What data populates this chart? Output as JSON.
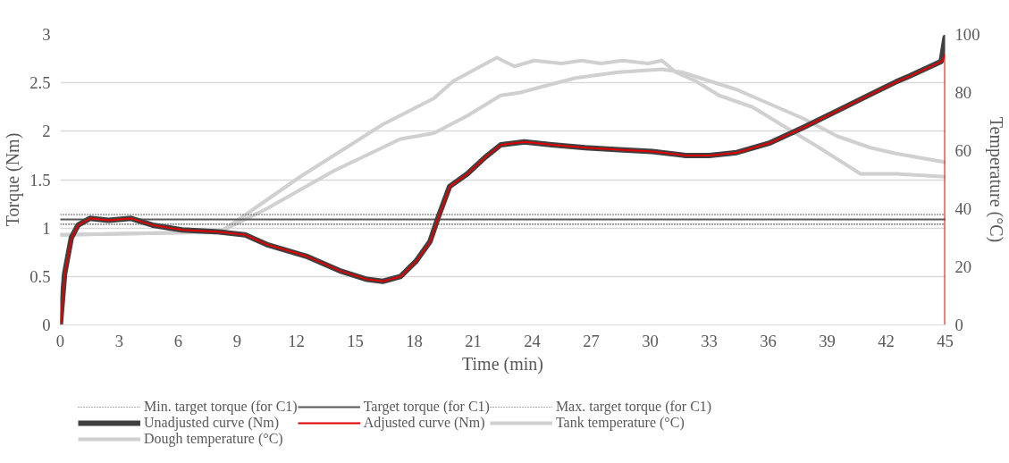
{
  "chart_data": {
    "type": "line",
    "xlabel": "Time (min)",
    "ylabel": "Torque (Nm)",
    "y2label": "Temperature (°C)",
    "xlim": [
      0,
      45
    ],
    "xticks": [
      0,
      3,
      6,
      9,
      12,
      15,
      18,
      21,
      24,
      27,
      30,
      33,
      36,
      39,
      42,
      45
    ],
    "ylim": [
      0,
      3
    ],
    "yticks": [
      0,
      0.5,
      1,
      1.5,
      2,
      2.5,
      3
    ],
    "y2lim": [
      0,
      100
    ],
    "y2ticks": [
      0,
      20,
      40,
      60,
      80,
      100
    ],
    "grid": "y",
    "legend": "bottom",
    "marker": "none",
    "series": [
      {
        "name": "Min. target torque (for C1)",
        "color": "#595959",
        "line_style": "dotted",
        "x": [
          0,
          45
        ],
        "values": [
          1.04,
          1.04
        ]
      },
      {
        "name": "Target torque (for C1)",
        "color": "#595959",
        "line_style": "solid",
        "x": [
          0,
          45
        ],
        "values": [
          1.09,
          1.09
        ]
      },
      {
        "name": "Max. target torque (for C1)",
        "color": "#595959",
        "line_style": "dotted",
        "x": [
          0,
          45
        ],
        "values": [
          1.14,
          1.14
        ]
      },
      {
        "name": "Unadjusted curve (Nm)",
        "color": "#404040",
        "line_style": "solid",
        "x": [
          0,
          0.22,
          0.56,
          0.9,
          1.5,
          2.45,
          3.6,
          4.7,
          6.2,
          8.1,
          9.4,
          10.5,
          12.5,
          14.2,
          15.6,
          16.4,
          17.3,
          18.1,
          18.8,
          19.2,
          19.8,
          20.7,
          21.6,
          22.4,
          23.6,
          25.0,
          26.7,
          28.4,
          30.1,
          31.8,
          33.0,
          34.4,
          36.1,
          37.8,
          39.5,
          41.2,
          42.5,
          43.2,
          44.8,
          45
        ],
        "values": [
          0,
          0.53,
          0.9,
          1.03,
          1.1,
          1.08,
          1.1,
          1.03,
          0.98,
          0.96,
          0.93,
          0.83,
          0.71,
          0.56,
          0.47,
          0.45,
          0.5,
          0.66,
          0.86,
          1.1,
          1.43,
          1.56,
          1.73,
          1.86,
          1.89,
          1.86,
          1.83,
          1.81,
          1.79,
          1.75,
          1.75,
          1.78,
          1.88,
          2.04,
          2.21,
          2.38,
          2.51,
          2.57,
          2.72,
          2.97
        ]
      },
      {
        "name": "Adjusted curve (Nm)",
        "color": "#e00000",
        "line_style": "solid",
        "x": [
          0,
          0.22,
          0.56,
          0.9,
          1.5,
          2.45,
          3.6,
          4.7,
          6.2,
          8.1,
          9.4,
          10.5,
          12.5,
          14.2,
          15.6,
          16.4,
          17.3,
          18.1,
          18.8,
          19.2,
          19.8,
          20.7,
          21.6,
          22.4,
          23.6,
          25.0,
          26.7,
          28.4,
          30.1,
          31.8,
          33.0,
          34.4,
          36.1,
          37.8,
          39.5,
          41.2,
          42.5,
          43.2,
          44.8,
          45,
          45
        ],
        "values": [
          0,
          0.53,
          0.9,
          1.03,
          1.1,
          1.08,
          1.1,
          1.03,
          0.98,
          0.96,
          0.93,
          0.83,
          0.71,
          0.56,
          0.47,
          0.45,
          0.5,
          0.66,
          0.86,
          1.1,
          1.43,
          1.56,
          1.73,
          1.86,
          1.89,
          1.86,
          1.83,
          1.81,
          1.79,
          1.75,
          1.75,
          1.78,
          1.88,
          2.04,
          2.21,
          2.38,
          2.51,
          2.57,
          2.72,
          2.79,
          0
        ]
      },
      {
        "name": "Tank temperature (°C)",
        "color": "#d0d0d0",
        "line_style": "solid",
        "axis": "y2",
        "x": [
          0,
          8.1,
          8.8,
          12.2,
          16.4,
          19.0,
          20.0,
          22.2,
          23.1,
          24.1,
          25.5,
          26.5,
          27.5,
          28.6,
          29.9,
          30.6,
          31.3,
          32.3,
          33.5,
          35.2,
          36.9,
          38.6,
          40.7,
          41.2,
          42.5,
          45
        ],
        "values": [
          31,
          32,
          35,
          51,
          69,
          78,
          84,
          92,
          89,
          91,
          90,
          91,
          90,
          91,
          90,
          91,
          87,
          84,
          79,
          75,
          68,
          61,
          52,
          52,
          52,
          51
        ]
      },
      {
        "name": "Dough temperature (°C)",
        "color": "#d0d0d0",
        "line_style": "solid",
        "axis": "y2",
        "x": [
          0,
          8.1,
          10.5,
          13.9,
          17.3,
          19.0,
          20.7,
          22.4,
          23.4,
          24.5,
          26.2,
          28.4,
          30.6,
          31.6,
          33.0,
          34.4,
          36.1,
          37.8,
          39.5,
          41.2,
          42.5,
          45
        ],
        "values": [
          31,
          32,
          40,
          53,
          64,
          66,
          72,
          79,
          80,
          82,
          85,
          87,
          88,
          87,
          84,
          81,
          76,
          71,
          65,
          61,
          59,
          56
        ]
      }
    ]
  }
}
